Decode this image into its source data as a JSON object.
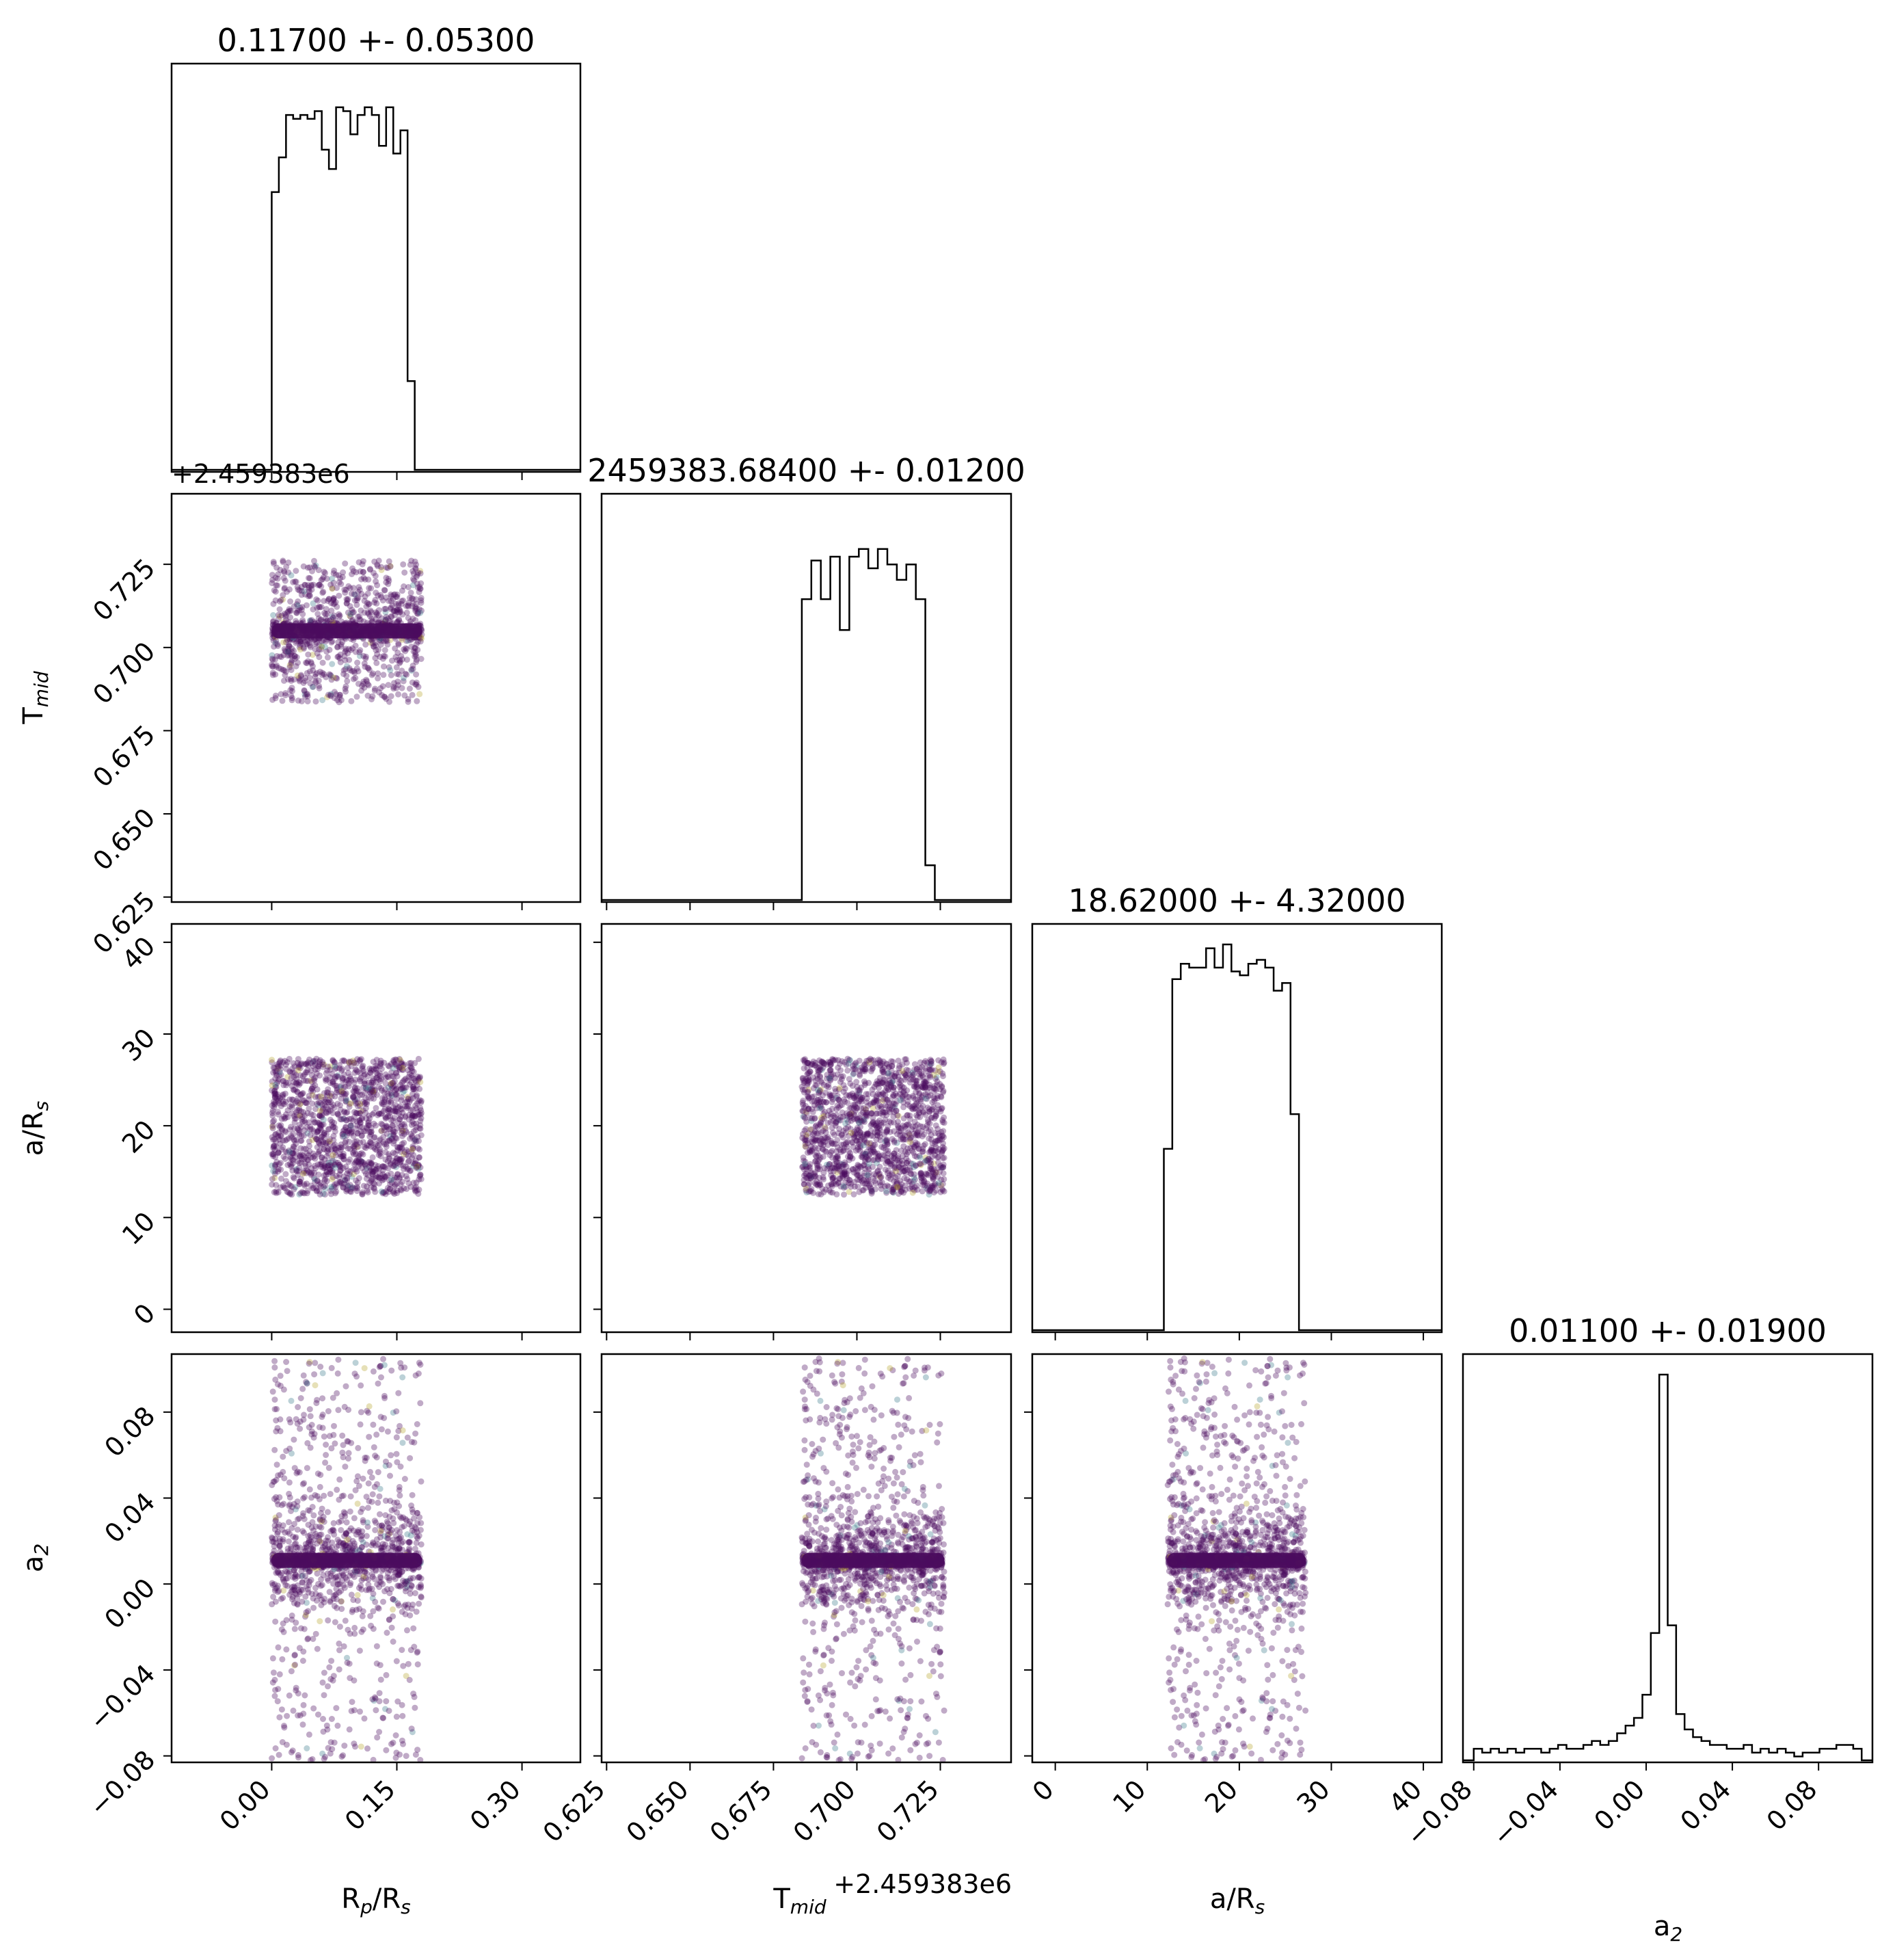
{
  "figure": {
    "type": "corner-plot"
  },
  "colors": {
    "scatter": "#4b0c5e",
    "line": "#000000",
    "frame": "#000000"
  },
  "offset_labels": {
    "tmid_y": "+2.459383e6",
    "tmid_x": "+2.459383e6"
  },
  "chart_data": [
    {
      "id": "hist-rp",
      "type": "bar",
      "title": "0.11700 +- 0.05300",
      "x_range": [
        -0.12,
        0.37
      ],
      "bins_x": [
        0.0,
        0.18
      ],
      "levels": [
        0.72,
        0.81,
        0.92,
        0.91,
        0.92,
        0.91,
        0.93,
        0.83,
        0.78,
        0.94,
        0.93,
        0.87,
        0.92,
        0.94,
        0.92,
        0.84,
        0.94,
        0.82,
        0.88,
        0.23,
        0.0
      ]
    },
    {
      "id": "hist-tmid",
      "type": "bar",
      "title": "2459383.68400 +- 0.01200",
      "x_range": [
        0.6235,
        0.7462
      ],
      "bins_x": [
        0.6835,
        0.7262
      ],
      "levels": [
        0.78,
        0.88,
        0.78,
        0.89,
        0.7,
        0.89,
        0.91,
        0.86,
        0.91,
        0.87,
        0.83,
        0.87,
        0.78,
        0.09,
        0.0
      ]
    },
    {
      "id": "hist-ars",
      "type": "bar",
      "title": "18.62000 +- 4.32000",
      "x_range": [
        -2.5,
        42.0
      ],
      "bins_x": [
        11.8,
        27.4
      ],
      "levels": [
        0.47,
        0.91,
        0.95,
        0.94,
        0.94,
        0.99,
        0.94,
        1.0,
        0.93,
        0.92,
        0.95,
        0.96,
        0.94,
        0.88,
        0.9,
        0.56,
        0.0
      ]
    },
    {
      "id": "hist-a2",
      "type": "bar",
      "title": "0.01100 +- 0.01900",
      "x_range": [
        -0.085,
        0.105
      ],
      "bins_x": [
        -0.08,
        0.1
      ],
      "levels": [
        0.03,
        0.02,
        0.03,
        0.02,
        0.03,
        0.02,
        0.03,
        0.03,
        0.02,
        0.03,
        0.04,
        0.03,
        0.03,
        0.04,
        0.05,
        0.04,
        0.05,
        0.07,
        0.09,
        0.11,
        0.17,
        0.33,
        1.0,
        0.35,
        0.12,
        0.08,
        0.06,
        0.05,
        0.04,
        0.04,
        0.03,
        0.03,
        0.04,
        0.02,
        0.03,
        0.02,
        0.03,
        0.02,
        0.01,
        0.02,
        0.02,
        0.03,
        0.03,
        0.04,
        0.04,
        0.03
      ]
    },
    {
      "id": "scatter-rp-tmid",
      "type": "scatter",
      "x_range": [
        -0.12,
        0.37
      ],
      "y_range": [
        0.6235,
        0.7462
      ],
      "x_bounds": [
        0.0,
        0.18
      ],
      "y_bounds": [
        0.6835,
        0.7262
      ],
      "y_center": 0.705,
      "y_spread": 0.02,
      "points": 1500
    },
    {
      "id": "scatter-rp-ars",
      "type": "scatter",
      "x_range": [
        -0.12,
        0.37
      ],
      "y_range": [
        -2.5,
        42.0
      ],
      "x_bounds": [
        0.0,
        0.18
      ],
      "y_bounds": [
        12.5,
        27.3
      ],
      "y_center": 20.0,
      "y_spread": 7.0,
      "points": 1500
    },
    {
      "id": "scatter-tmid-ars",
      "type": "scatter",
      "x_range": [
        0.6235,
        0.7462
      ],
      "y_range": [
        -2.5,
        42.0
      ],
      "x_bounds": [
        0.6835,
        0.7262
      ],
      "y_bounds": [
        12.5,
        27.3
      ],
      "y_center": 20.0,
      "y_spread": 7.0,
      "points": 1500
    },
    {
      "id": "scatter-rp-a2",
      "type": "scatter",
      "x_range": [
        -0.12,
        0.37
      ],
      "y_range": [
        -0.083,
        0.107
      ],
      "x_bounds": [
        0.0,
        0.18
      ],
      "y_bounds": [
        -0.082,
        0.105
      ],
      "y_center": 0.011,
      "y_spread": 0.019,
      "points": 1800
    },
    {
      "id": "scatter-tmid-a2",
      "type": "scatter",
      "x_range": [
        0.6235,
        0.7462
      ],
      "y_range": [
        -0.083,
        0.107
      ],
      "x_bounds": [
        0.6835,
        0.7262
      ],
      "y_bounds": [
        -0.082,
        0.105
      ],
      "y_center": 0.011,
      "y_spread": 0.019,
      "points": 1800
    },
    {
      "id": "scatter-ars-a2",
      "type": "scatter",
      "x_range": [
        -2.5,
        42.0
      ],
      "y_range": [
        -0.083,
        0.107
      ],
      "x_bounds": [
        12.2,
        27.2
      ],
      "y_bounds": [
        -0.082,
        0.105
      ],
      "y_center": 0.011,
      "y_spread": 0.019,
      "points": 1800
    }
  ],
  "axes": {
    "x": [
      {
        "label_main": "R",
        "label_sub1": "p",
        "label_mid": "/R",
        "label_sub2": "s",
        "ticks": [
          {
            "v": 0.0,
            "label": "0.00"
          },
          {
            "v": 0.15,
            "label": "0.15"
          },
          {
            "v": 0.3,
            "label": "0.30"
          }
        ]
      },
      {
        "label_main": "T",
        "label_sub1": "mid",
        "label_mid": "",
        "label_sub2": "",
        "ticks": [
          {
            "v": 0.625,
            "label": "0.625"
          },
          {
            "v": 0.65,
            "label": "0.650"
          },
          {
            "v": 0.675,
            "label": "0.675"
          },
          {
            "v": 0.7,
            "label": "0.700"
          },
          {
            "v": 0.725,
            "label": "0.725"
          }
        ]
      },
      {
        "label_main": "a/R",
        "label_sub1": "s",
        "label_mid": "",
        "label_sub2": "",
        "ticks": [
          {
            "v": 0,
            "label": "0"
          },
          {
            "v": 10,
            "label": "10"
          },
          {
            "v": 20,
            "label": "20"
          },
          {
            "v": 30,
            "label": "30"
          },
          {
            "v": 40,
            "label": "40"
          }
        ]
      },
      {
        "label_main": "a",
        "label_sub1": "2",
        "label_mid": "",
        "label_sub2": "",
        "ticks": [
          {
            "v": -0.08,
            "label": "−0.08"
          },
          {
            "v": -0.04,
            "label": "−0.04"
          },
          {
            "v": 0.0,
            "label": "0.00"
          },
          {
            "v": 0.04,
            "label": "0.04"
          },
          {
            "v": 0.08,
            "label": "0.08"
          }
        ]
      }
    ],
    "y": [
      null,
      {
        "label_main": "T",
        "label_sub1": "mid",
        "label_mid": "",
        "label_sub2": "",
        "ticks": [
          {
            "v": 0.625,
            "label": "0.625"
          },
          {
            "v": 0.65,
            "label": "0.650"
          },
          {
            "v": 0.675,
            "label": "0.675"
          },
          {
            "v": 0.7,
            "label": "0.700"
          },
          {
            "v": 0.725,
            "label": "0.725"
          }
        ]
      },
      {
        "label_main": "a/R",
        "label_sub1": "s",
        "label_mid": "",
        "label_sub2": "",
        "ticks": [
          {
            "v": 0,
            "label": "0"
          },
          {
            "v": 10,
            "label": "10"
          },
          {
            "v": 20,
            "label": "20"
          },
          {
            "v": 30,
            "label": "30"
          },
          {
            "v": 40,
            "label": "40"
          }
        ]
      },
      {
        "label_main": "a",
        "label_sub1": "2",
        "label_mid": "",
        "label_sub2": "",
        "ticks": [
          {
            "v": -0.08,
            "label": "−0.08"
          },
          {
            "v": -0.04,
            "label": "−0.04"
          },
          {
            "v": 0.0,
            "label": "0.00"
          },
          {
            "v": 0.04,
            "label": "0.04"
          },
          {
            "v": 0.08,
            "label": "0.08"
          }
        ]
      }
    ]
  }
}
